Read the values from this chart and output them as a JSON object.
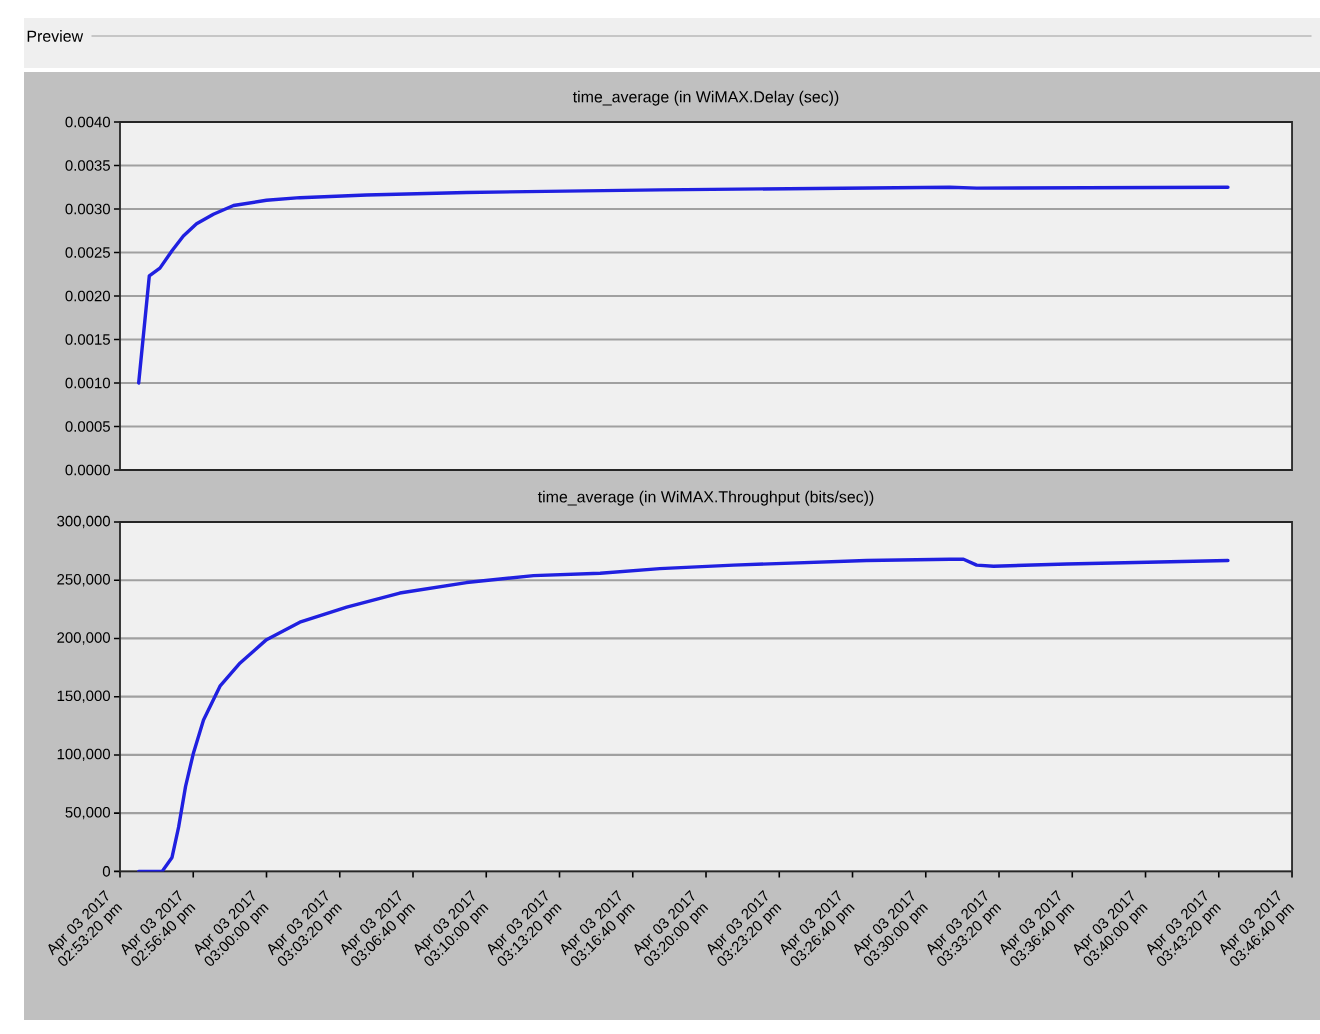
{
  "chart_data": [
    {
      "type": "line",
      "title": "time_average (in WiMAX.Delay (sec))",
      "annotations": [
        "Preview"
      ],
      "x": [
        "2017-04-03T14:54:11",
        "2017-04-03T14:54:40",
        "2017-04-03T14:55:09",
        "2017-04-03T14:55:42",
        "2017-04-03T14:56:13",
        "2017-04-03T14:56:49",
        "2017-04-03T14:57:35",
        "2017-04-03T14:58:30",
        "2017-04-03T15:00:00",
        "2017-04-03T15:01:31",
        "2017-04-03T15:04:33",
        "2017-04-03T15:09:06",
        "2017-04-03T15:17:54",
        "2017-04-03T15:31:06",
        "2017-04-03T15:32:19",
        "2017-04-03T15:43:45"
      ],
      "values": [
        0.001,
        0.00223,
        0.00232,
        0.00252,
        0.00269,
        0.00283,
        0.00294,
        0.00304,
        0.0031,
        0.00313,
        0.00316,
        0.00319,
        0.00322,
        0.00325,
        0.00324,
        0.00325
      ],
      "color": "#2020e0",
      "xlim": [
        "2017-04-03T14:53:20",
        "2017-04-03T15:46:40"
      ],
      "ylim": [
        0,
        0.004
      ],
      "yticks": [
        {
          "value": 0,
          "label": "0.0000"
        },
        {
          "value": 0.0005,
          "label": "0.0005"
        },
        {
          "value": 0.001,
          "label": "0.0010"
        },
        {
          "value": 0.0015,
          "label": "0.0015"
        },
        {
          "value": 0.002,
          "label": "0.0020"
        },
        {
          "value": 0.0025,
          "label": "0.0025"
        },
        {
          "value": 0.003,
          "label": "0.0030"
        },
        {
          "value": 0.0035,
          "label": "0.0035"
        },
        {
          "value": 0.004,
          "label": "0.0040"
        }
      ],
      "grid": "y",
      "tick_labels": "y"
    },
    {
      "type": "line",
      "title": "time_average (in WiMAX.Throughput (bits/sec))",
      "x": [
        "2017-04-03T14:54:11",
        "2017-04-03T14:55:15",
        "2017-04-03T14:55:42",
        "2017-04-03T14:56:00",
        "2017-04-03T14:56:19",
        "2017-04-03T14:56:40",
        "2017-04-03T14:57:08",
        "2017-04-03T14:57:53",
        "2017-04-03T14:58:48",
        "2017-04-03T15:00:00",
        "2017-04-03T15:01:31",
        "2017-04-03T15:03:39",
        "2017-04-03T15:06:04",
        "2017-04-03T15:09:06",
        "2017-04-03T15:12:09",
        "2017-04-03T15:15:11",
        "2017-04-03T15:17:54",
        "2017-04-03T15:21:15",
        "2017-04-03T15:27:18",
        "2017-04-03T15:31:06",
        "2017-04-03T15:31:43",
        "2017-04-03T15:32:19",
        "2017-04-03T15:33:05",
        "2017-04-03T15:36:25",
        "2017-04-03T15:43:45"
      ],
      "values": [
        0,
        0,
        12000,
        38000,
        73000,
        101000,
        130000,
        159000,
        179000,
        199000,
        214000,
        227000,
        239000,
        248000,
        254000,
        256000,
        260000,
        263000,
        267000,
        268000,
        268000,
        263000,
        262000,
        264000,
        267000
      ],
      "color": "#2020e0",
      "xlim": [
        "2017-04-03T14:53:20",
        "2017-04-03T15:46:40"
      ],
      "ylim": [
        0,
        300000
      ],
      "xticks": [
        {
          "value": "2017-04-03T14:53:20",
          "label": "Apr 03 2017 02:53:20 pm"
        },
        {
          "value": "2017-04-03T14:56:40",
          "label": "Apr 03 2017 02:56:40 pm"
        },
        {
          "value": "2017-04-03T15:00:00",
          "label": "Apr 03 2017 03:00:00 pm"
        },
        {
          "value": "2017-04-03T15:03:20",
          "label": "Apr 03 2017 03:03:20 pm"
        },
        {
          "value": "2017-04-03T15:06:40",
          "label": "Apr 03 2017 03:06:40 pm"
        },
        {
          "value": "2017-04-03T15:10:00",
          "label": "Apr 03 2017 03:10:00 pm"
        },
        {
          "value": "2017-04-03T15:13:20",
          "label": "Apr 03 2017 03:13:20 pm"
        },
        {
          "value": "2017-04-03T15:16:40",
          "label": "Apr 03 2017 03:16:40 pm"
        },
        {
          "value": "2017-04-03T15:20:00",
          "label": "Apr 03 2017 03:20:00 pm"
        },
        {
          "value": "2017-04-03T15:23:20",
          "label": "Apr 03 2017 03:23:20 pm"
        },
        {
          "value": "2017-04-03T15:26:40",
          "label": "Apr 03 2017 03:26:40 pm"
        },
        {
          "value": "2017-04-03T15:30:00",
          "label": "Apr 03 2017 03:30:00 pm"
        },
        {
          "value": "2017-04-03T15:33:20",
          "label": "Apr 03 2017 03:33:20 pm"
        },
        {
          "value": "2017-04-03T15:36:40",
          "label": "Apr 03 2017 03:36:40 pm"
        },
        {
          "value": "2017-04-03T15:40:00",
          "label": "Apr 03 2017 03:40:00 pm"
        },
        {
          "value": "2017-04-03T15:43:20",
          "label": "Apr 03 2017 03:43:20 pm"
        },
        {
          "value": "2017-04-03T15:46:40",
          "label": "Apr 03 2017 03:46:40 pm"
        }
      ],
      "yticks": [
        0,
        {
          "value": 50000,
          "label": "50,000"
        },
        {
          "value": 100000,
          "label": "100,000"
        },
        {
          "value": 150000,
          "label": "150,000"
        },
        {
          "value": 200000,
          "label": "200,000"
        },
        {
          "value": 250000,
          "label": "250,000"
        },
        {
          "value": 300000,
          "label": "300,000"
        }
      ],
      "grid": "y"
    }
  ]
}
